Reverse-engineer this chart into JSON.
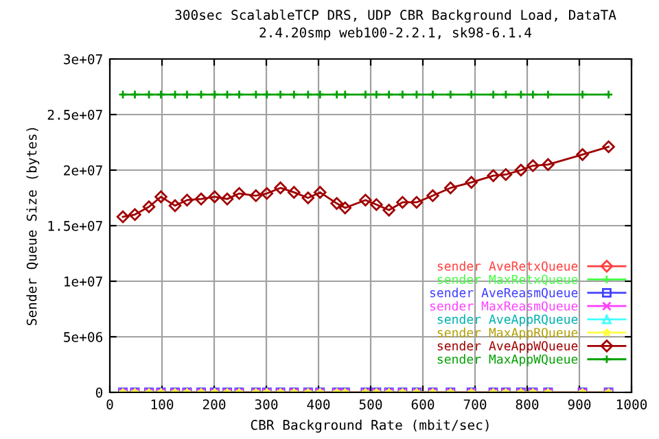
{
  "chart_data": {
    "type": "line",
    "title": "300sec ScalableTCP DRS, UDP CBR Background Load, DataTA",
    "subtitle": "2.4.20smp web100-2.2.1, sk98-6.1.4",
    "xlabel": "CBR Background Rate (mbit/sec)",
    "ylabel": "Sender Queue Size (bytes)",
    "x": [
      25,
      48,
      75,
      98,
      125,
      148,
      175,
      201,
      225,
      248,
      280,
      301,
      327,
      353,
      380,
      403,
      435,
      451,
      490,
      511,
      535,
      561,
      588,
      619,
      653,
      693,
      735,
      759,
      788,
      811,
      840,
      906,
      956
    ],
    "series": [
      {
        "name": "sender AveRetxQueue",
        "color": "#ff4040",
        "marker": "diamond",
        "values": [
          null,
          null,
          null,
          null,
          null,
          null,
          null,
          null,
          null,
          null,
          null,
          null,
          null,
          null,
          null,
          null,
          null,
          null,
          null,
          null,
          null,
          null,
          null,
          null,
          null,
          null,
          null,
          null,
          null,
          null,
          null,
          null,
          null
        ]
      },
      {
        "name": "sender MaxRetxQueue",
        "color": "#40ff40",
        "marker": "cross",
        "values": [
          null,
          null,
          null,
          null,
          null,
          null,
          null,
          null,
          null,
          null,
          null,
          null,
          null,
          null,
          null,
          null,
          null,
          null,
          null,
          null,
          null,
          null,
          null,
          null,
          null,
          null,
          null,
          null,
          null,
          null,
          null,
          null,
          null
        ]
      },
      {
        "name": "sender AveReasmQueue",
        "color": "#4040ff",
        "marker": "square",
        "values": [
          0,
          0,
          0,
          0,
          0,
          0,
          0,
          0,
          0,
          0,
          0,
          0,
          0,
          0,
          0,
          0,
          0,
          0,
          0,
          0,
          0,
          0,
          0,
          0,
          0,
          0,
          0,
          0,
          0,
          0,
          0,
          0,
          0
        ]
      },
      {
        "name": "sender MaxReasmQueue",
        "color": "#ff40ff",
        "marker": "x",
        "values": [
          0,
          0,
          0,
          0,
          0,
          0,
          0,
          0,
          0,
          0,
          0,
          0,
          0,
          0,
          0,
          0,
          0,
          0,
          0,
          0,
          0,
          0,
          0,
          0,
          0,
          0,
          0,
          0,
          0,
          0,
          0,
          0,
          0
        ]
      },
      {
        "name": "sender AveAppRQueue",
        "color": "#40ffff",
        "marker": "triangle",
        "values": [
          null,
          null,
          null,
          null,
          null,
          null,
          null,
          null,
          null,
          null,
          null,
          null,
          null,
          null,
          null,
          null,
          null,
          null,
          null,
          null,
          null,
          null,
          null,
          null,
          null,
          null,
          null,
          null,
          null,
          null,
          null,
          null,
          null
        ]
      },
      {
        "name": "sender MaxAppRQueue",
        "color": "#ffff40",
        "marker": "star",
        "values": [
          0,
          0,
          0,
          0,
          0,
          0,
          0,
          0,
          0,
          0,
          0,
          0,
          0,
          0,
          0,
          0,
          0,
          0,
          0,
          0,
          0,
          0,
          0,
          0,
          0,
          0,
          0,
          0,
          0,
          0,
          0,
          0,
          0
        ]
      },
      {
        "name": "sender AveAppWQueue",
        "color": "#a00000",
        "marker": "diamond",
        "values": [
          15800000,
          16000000,
          16700000,
          17600000,
          16800000,
          17300000,
          17400000,
          17600000,
          17400000,
          17900000,
          17700000,
          17900000,
          18400000,
          18000000,
          17500000,
          18000000,
          17000000,
          16600000,
          17300000,
          16900000,
          16400000,
          17100000,
          17100000,
          17700000,
          18400000,
          18900000,
          19500000,
          19600000,
          20000000,
          20400000,
          20500000,
          21400000,
          22100000
        ]
      },
      {
        "name": "sender MaxAppWQueue",
        "color": "#00a000",
        "marker": "cross",
        "values": [
          26800000,
          26800000,
          26800000,
          26800000,
          26800000,
          26800000,
          26800000,
          26800000,
          26800000,
          26800000,
          26800000,
          26800000,
          26800000,
          26800000,
          26800000,
          26800000,
          26800000,
          26800000,
          26800000,
          26800000,
          26800000,
          26800000,
          26800000,
          26800000,
          26800000,
          26800000,
          26800000,
          26800000,
          26800000,
          26800000,
          26800000,
          26800000,
          26800000
        ]
      }
    ],
    "xlim": [
      0,
      1000
    ],
    "xticks": [
      0,
      100,
      200,
      300,
      400,
      500,
      600,
      700,
      800,
      900,
      1000
    ],
    "ylim": [
      0,
      30000000
    ],
    "yticks": [
      {
        "value": 0,
        "label": "0"
      },
      {
        "value": 5000000,
        "label": "5e+06"
      },
      {
        "value": 10000000,
        "label": "1e+07"
      },
      {
        "value": 15000000,
        "label": "1.5e+07"
      },
      {
        "value": 20000000,
        "label": "2e+07"
      },
      {
        "value": 25000000,
        "label": "2.5e+07"
      },
      {
        "value": 30000000,
        "label": "3e+07"
      }
    ],
    "grid": true,
    "legend": "right",
    "line_style": "solid"
  }
}
